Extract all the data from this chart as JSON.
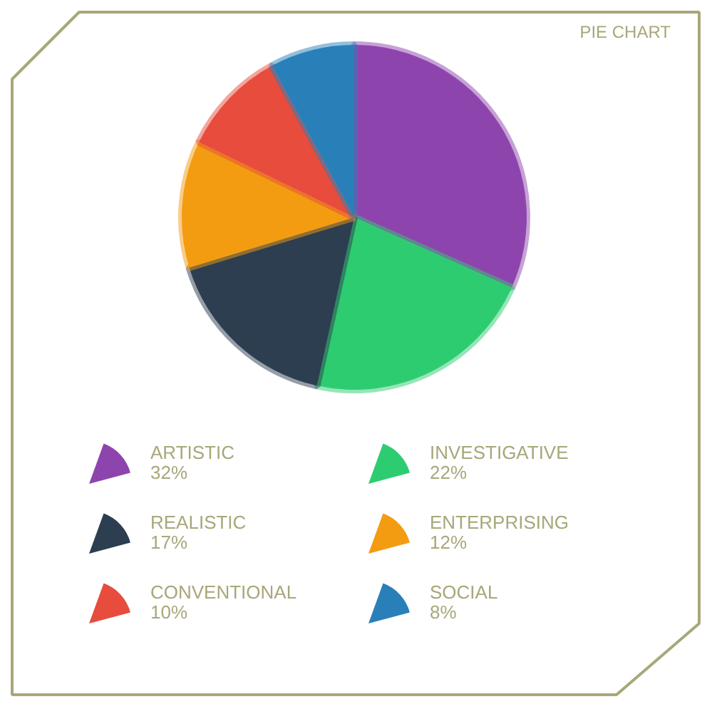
{
  "chart_data": {
    "type": "pie",
    "title": "PIE CHART",
    "categories": [
      "ARTISTIC",
      "INVESTIGATIVE",
      "REALISTIC",
      "ENTERPRISING",
      "CONVENTIONAL",
      "SOCIAL"
    ],
    "values": [
      32,
      22,
      17,
      12,
      10,
      8
    ],
    "value_labels": [
      "32%",
      "22%",
      "17%",
      "12%",
      "10%",
      "8%"
    ],
    "colors": [
      "#8e44ad",
      "#2ecc71",
      "#2c3e50",
      "#f39c12",
      "#e74c3c",
      "#2980b9"
    ],
    "legend": "bottom"
  }
}
